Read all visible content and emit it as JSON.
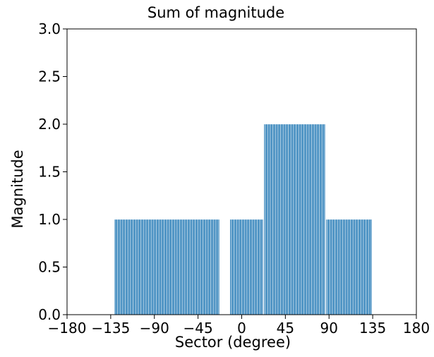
{
  "chart_data": {
    "type": "bar",
    "title": "Sum of magnitude",
    "xlabel": "Sector (degree)",
    "ylabel": "Magnitude",
    "xlim": [
      -180,
      180
    ],
    "ylim": [
      0,
      3.0
    ],
    "grid": false,
    "bar_color": "#1f77b4",
    "xticks": [
      -180,
      -135,
      -90,
      -45,
      0,
      45,
      90,
      135,
      180
    ],
    "xtick_labels": [
      "−180",
      "−135",
      "−90",
      "−45",
      "0",
      "45",
      "90",
      "135",
      "180"
    ],
    "yticks": [
      0.0,
      0.5,
      1.0,
      1.5,
      2.0,
      2.5,
      3.0
    ],
    "ytick_labels": [
      "0.0",
      "0.5",
      "1.0",
      "1.5",
      "2.0",
      "2.5",
      "3.0"
    ],
    "bar_width_deg": 1,
    "segments": [
      {
        "x_start": -131,
        "x_end": -23,
        "value": 1.0
      },
      {
        "x_start": -12,
        "x_end": 22,
        "value": 1.0
      },
      {
        "x_start": 23,
        "x_end": 86,
        "value": 2.0
      },
      {
        "x_start": 87,
        "x_end": 134,
        "value": 1.0
      }
    ]
  }
}
